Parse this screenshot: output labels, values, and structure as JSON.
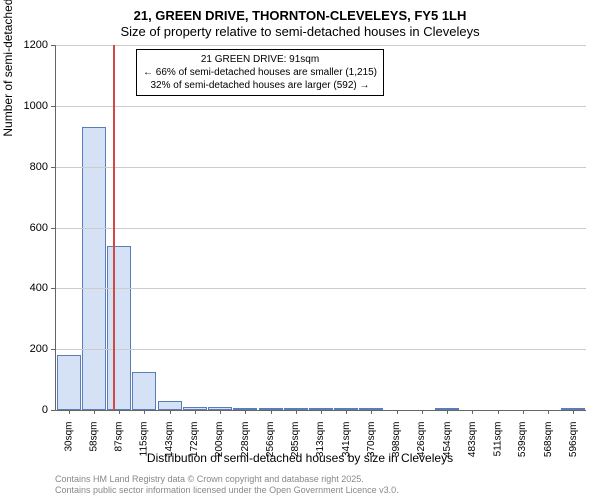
{
  "chart": {
    "type": "histogram",
    "title_line1": "21, GREEN DRIVE, THORNTON-CLEVELEYS, FY5 1LH",
    "title_line2": "Size of property relative to semi-detached houses in Cleveleys",
    "yaxis_label": "Number of semi-detached properties",
    "xaxis_label": "Distribution of semi-detached houses by size in Cleveleys",
    "ylim": [
      0,
      1200
    ],
    "ytick_step": 200,
    "yticks": [
      0,
      200,
      400,
      600,
      800,
      1000,
      1200
    ],
    "xticks": [
      "30sqm",
      "58sqm",
      "87sqm",
      "115sqm",
      "143sqm",
      "172sqm",
      "200sqm",
      "228sqm",
      "256sqm",
      "285sqm",
      "313sqm",
      "341sqm",
      "370sqm",
      "398sqm",
      "426sqm",
      "454sqm",
      "483sqm",
      "511sqm",
      "539sqm",
      "568sqm",
      "596sqm"
    ],
    "bars": [
      180,
      930,
      540,
      125,
      30,
      10,
      10,
      5,
      3,
      2,
      1,
      1,
      1,
      0,
      0,
      1,
      0,
      0,
      0,
      0,
      1
    ],
    "bar_fill": "#d5e2f6",
    "bar_border": "#5a7db8",
    "grid_color": "#cccccc",
    "background_color": "#ffffff",
    "marker_color": "#d04848",
    "marker_position_sqm": 91,
    "annotation": {
      "line1": "21 GREEN DRIVE: 91sqm",
      "line2": "← 66% of semi-detached houses are smaller (1,215)",
      "line3": "32% of semi-detached houses are larger (592) →"
    },
    "footer_line1": "Contains HM Land Registry data © Crown copyright and database right 2025.",
    "footer_line2": "Contains public sector information licensed under the Open Government Licence v3.0."
  }
}
